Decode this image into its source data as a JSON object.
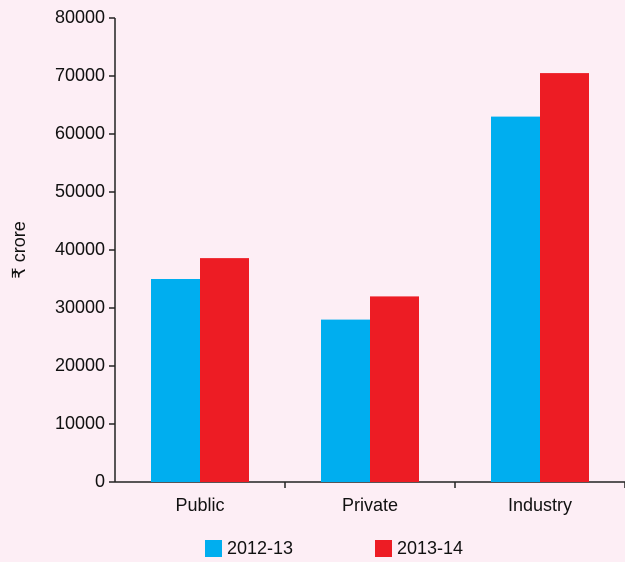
{
  "chart_data": {
    "type": "bar",
    "y_label": "₹ crore",
    "categories": [
      "Public",
      "Private",
      "Industry"
    ],
    "series": [
      {
        "name": "2012-13",
        "color": "#00aeef",
        "values": [
          35000,
          28000,
          63000
        ]
      },
      {
        "name": "2013-14",
        "color": "#ed1c24",
        "values": [
          38600,
          32000,
          70500
        ]
      }
    ],
    "ylim": [
      0,
      80000
    ],
    "yticks": [
      0,
      10000,
      20000,
      30000,
      40000,
      50000,
      60000,
      70000,
      80000
    ],
    "grid": false,
    "legend": "bottom"
  }
}
